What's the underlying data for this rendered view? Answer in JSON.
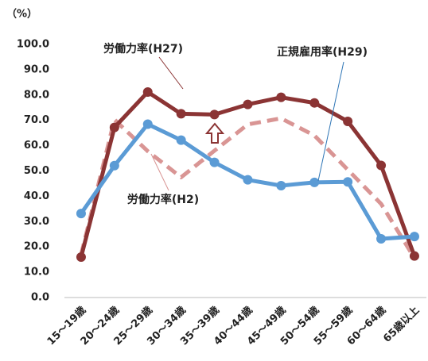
{
  "chart_data": {
    "type": "line",
    "y_label": "（%）",
    "categories": [
      "15～19歳",
      "20～24歳",
      "25～29歳",
      "30～34歳",
      "35～39歳",
      "40～44歳",
      "45～49歳",
      "50～54歳",
      "55～59歳",
      "60～64歳",
      "65歳以上"
    ],
    "series": [
      {
        "name": "労働力率(H2)",
        "color": "#d99594",
        "dashed": true,
        "markers": false,
        "values": [
          17.0,
          70.3,
          57.8,
          47.5,
          58.0,
          68.4,
          70.8,
          64.0,
          50.5,
          37.0,
          15.6
        ]
      },
      {
        "name": "労働力率(H27)",
        "color": "#8b3434",
        "dashed": false,
        "markers": true,
        "values": [
          16.0,
          67.2,
          81.2,
          72.6,
          72.3,
          76.3,
          79.1,
          76.9,
          69.6,
          52.2,
          16.4
        ]
      },
      {
        "name": "正規雇用率(H29)",
        "color": "#5b9bd5",
        "dashed": false,
        "markers": true,
        "values": [
          33.2,
          52.1,
          68.5,
          62.2,
          53.4,
          46.5,
          44.2,
          45.5,
          45.7,
          23.2,
          24.1
        ]
      }
    ],
    "ylim": [
      0,
      100
    ],
    "yticks": [
      {
        "value": 0,
        "label": "0.0"
      },
      {
        "value": 10,
        "label": "10.0"
      },
      {
        "value": 20,
        "label": "20.0"
      },
      {
        "value": 30,
        "label": "30.0"
      },
      {
        "value": 40,
        "label": "40.0"
      },
      {
        "value": 50,
        "label": "50.0"
      },
      {
        "value": 60,
        "label": "60.0"
      },
      {
        "value": 70,
        "label": "70.0"
      },
      {
        "value": 80,
        "label": "80.0"
      },
      {
        "value": 90,
        "label": "90.0"
      },
      {
        "value": 100,
        "label": "100.0"
      }
    ],
    "grid": false
  }
}
